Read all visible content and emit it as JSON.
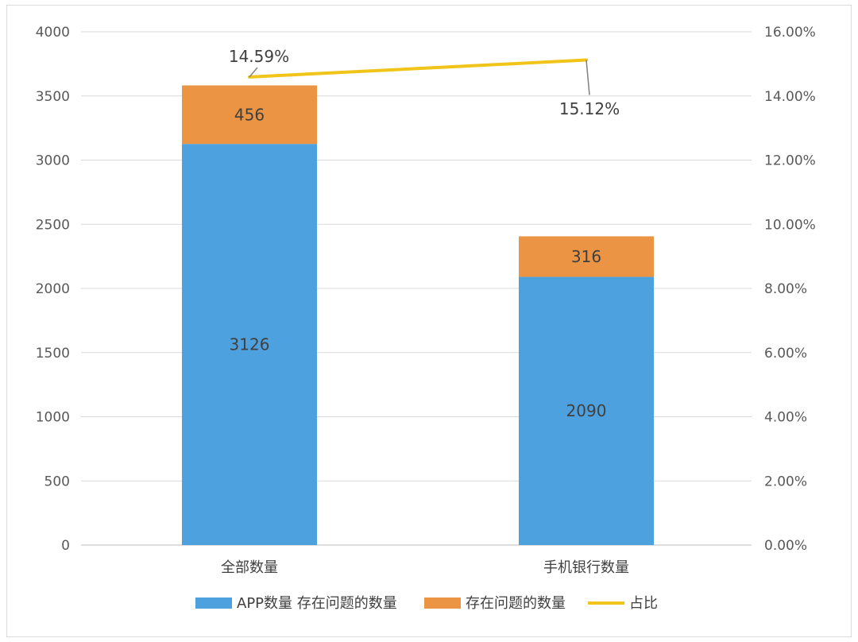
{
  "chart_data": {
    "type": "bar",
    "stacked": true,
    "categories": [
      "全部数量",
      "手机银行数量"
    ],
    "series": [
      {
        "name": "APP数量 存在问题的数量",
        "type": "bar",
        "axis": "left",
        "color": "#4ea1df",
        "values": [
          3126,
          2090
        ]
      },
      {
        "name": "存在问题的数量",
        "type": "bar",
        "axis": "left",
        "color": "#ea9444",
        "values": [
          456,
          316
        ]
      },
      {
        "name": "占比",
        "type": "line",
        "axis": "right",
        "color": "#f0c419",
        "values": [
          14.59,
          15.12
        ],
        "labels": [
          "14.59%",
          "15.12%"
        ]
      }
    ],
    "ylim": [
      0,
      4000
    ],
    "yticks": [
      "0",
      "500",
      "1000",
      "1500",
      "2000",
      "2500",
      "3000",
      "3500",
      "4000"
    ],
    "y2lim": [
      0,
      16
    ],
    "y2ticks": [
      "0.00%",
      "2.00%",
      "4.00%",
      "6.00%",
      "8.00%",
      "10.00%",
      "12.00%",
      "14.00%",
      "16.00%"
    ],
    "grid": true,
    "legend_position": "bottom"
  }
}
